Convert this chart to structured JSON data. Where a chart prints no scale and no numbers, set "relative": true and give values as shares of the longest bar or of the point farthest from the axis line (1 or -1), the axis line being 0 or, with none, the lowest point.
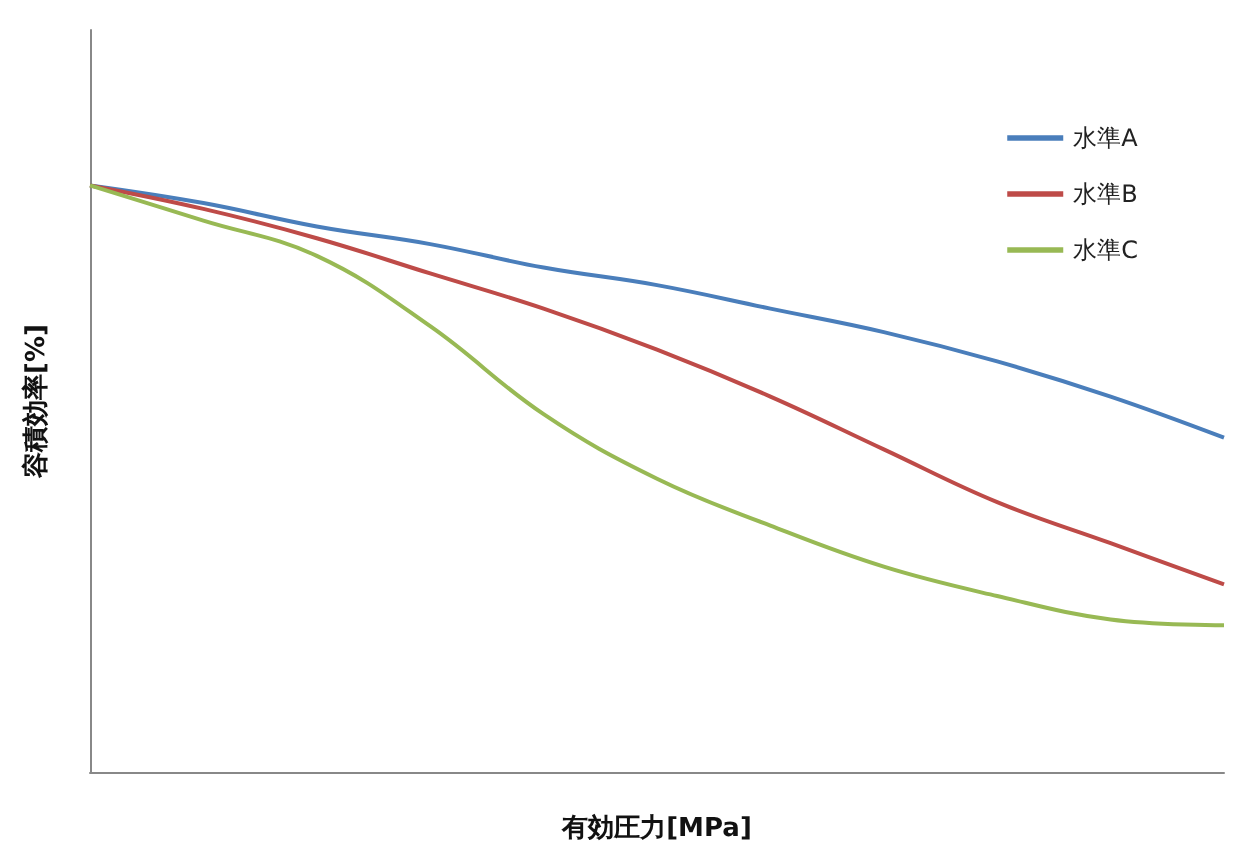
{
  "chart_data": {
    "type": "line",
    "relative": true,
    "xlabel": "有効圧力[MPa]",
    "ylabel": "容積効率[%]",
    "legend": "top right",
    "categories": [
      null,
      null,
      null,
      null,
      null,
      null,
      null,
      null,
      null,
      null,
      null
    ],
    "series": [
      {
        "name": "水準A",
        "color": "#4a7ebb",
        "values": [
          1,
          0.97,
          0.93,
          0.9,
          0.86,
          0.83,
          0.79,
          0.75,
          0.7,
          0.64,
          0.57
        ]
      },
      {
        "name": "水準B",
        "color": "#be4b48",
        "values": [
          1,
          0.96,
          0.91,
          0.85,
          0.79,
          0.72,
          0.64,
          0.55,
          0.46,
          0.39,
          0.32
        ]
      },
      {
        "name": "水準C",
        "color": "#98b954",
        "values": [
          1,
          0.94,
          0.88,
          0.76,
          0.61,
          0.5,
          0.42,
          0.35,
          0.3,
          0.26,
          0.25
        ]
      }
    ]
  }
}
